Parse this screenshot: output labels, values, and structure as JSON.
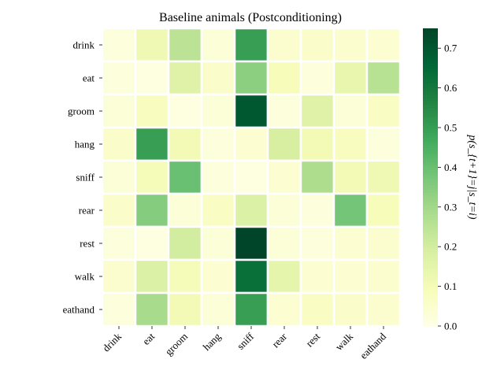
{
  "chart_data": {
    "type": "heatmap",
    "title": "Baseline animals (Postconditioning)",
    "xlabel": "",
    "ylabel": "",
    "x_categories": [
      "drink",
      "eat",
      "groom",
      "hang",
      "sniff",
      "rear",
      "rest",
      "walk",
      "eathand"
    ],
    "y_categories": [
      "drink",
      "eat",
      "groom",
      "hang",
      "sniff",
      "rear",
      "rest",
      "walk",
      "eathand"
    ],
    "values": [
      [
        0.02,
        0.12,
        0.25,
        0.03,
        0.5,
        0.05,
        0.06,
        0.05,
        0.04
      ],
      [
        0.02,
        0.01,
        0.17,
        0.06,
        0.34,
        0.09,
        0.02,
        0.14,
        0.26
      ],
      [
        0.03,
        0.08,
        0.01,
        0.03,
        0.7,
        0.02,
        0.17,
        0.03,
        0.07
      ],
      [
        0.06,
        0.5,
        0.11,
        0.02,
        0.04,
        0.19,
        0.11,
        0.08,
        0.02
      ],
      [
        0.03,
        0.1,
        0.4,
        0.02,
        0.01,
        0.04,
        0.28,
        0.11,
        0.12
      ],
      [
        0.06,
        0.35,
        0.03,
        0.07,
        0.18,
        0.03,
        0.02,
        0.38,
        0.09
      ],
      [
        0.02,
        0.01,
        0.2,
        0.03,
        0.75,
        0.03,
        0.02,
        0.04,
        0.05
      ],
      [
        0.05,
        0.18,
        0.1,
        0.04,
        0.63,
        0.15,
        0.04,
        0.04,
        0.05
      ],
      [
        0.02,
        0.29,
        0.11,
        0.03,
        0.5,
        0.04,
        0.07,
        0.06,
        0.05
      ]
    ],
    "colorbar": {
      "label": "p(s_{t+1}=j|s_t=i)",
      "range": [
        0,
        0.75
      ],
      "ticks": [
        0.0,
        0.1,
        0.2,
        0.3,
        0.4,
        0.5,
        0.6,
        0.7
      ],
      "tick_labels": [
        "0.0",
        "0.1",
        "0.2",
        "0.3",
        "0.4",
        "0.5",
        "0.6",
        "0.7"
      ],
      "colormap": "YlGn"
    },
    "cell_border_color": "#ffffff"
  }
}
